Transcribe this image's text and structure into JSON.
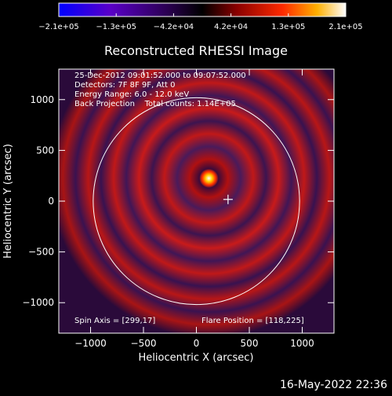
{
  "chart_data": {
    "type": "heatmap",
    "title": "Reconstructed RHESSI Image",
    "xlabel": "Heliocentric X (arcsec)",
    "ylabel": "Heliocentric Y (arcsec)",
    "xlim": [
      -1300,
      1300
    ],
    "ylim": [
      -1300,
      1300
    ],
    "xticks": [
      -1000,
      -500,
      0,
      500,
      1000
    ],
    "yticks": [
      -1000,
      -500,
      0,
      500,
      1000
    ],
    "xtick_labels": [
      "−1000",
      "−500",
      "0",
      "500",
      "1000"
    ],
    "ytick_labels": [
      "−1000",
      "−500",
      "0",
      "500",
      "1000"
    ],
    "colorbar": {
      "min": -210000,
      "max": 210000,
      "tick_labels": [
        "−2.1e+05",
        "−1.3e+05",
        "−4.2e+04",
        "4.2e+04",
        "1.3e+05",
        "2.1e+05"
      ],
      "colors": [
        "#0000ff",
        "#5a00c8",
        "#2a0050",
        "#000000",
        "#8a0000",
        "#ff2a00",
        "#ffb000",
        "#ffffff"
      ]
    },
    "annotations": [
      "25-Dec-2012 09:01:52.000 to 09:07:52.000",
      "Detectors: 7F 8F 9F, Att 0",
      "Energy Range: 6.0 - 12.0 keV",
      "Back Projection    Total counts: 1.14E+05"
    ],
    "spin_axis_label": "Spin Axis = [299,17]",
    "flare_position_label": "Flare Position = [118,225]",
    "spin_axis": [
      299,
      17
    ],
    "flare_position": [
      118,
      225
    ],
    "solar_limb_radius_arcsec": 975
  },
  "footer": {
    "timestamp": "16-May-2022 22:36"
  }
}
